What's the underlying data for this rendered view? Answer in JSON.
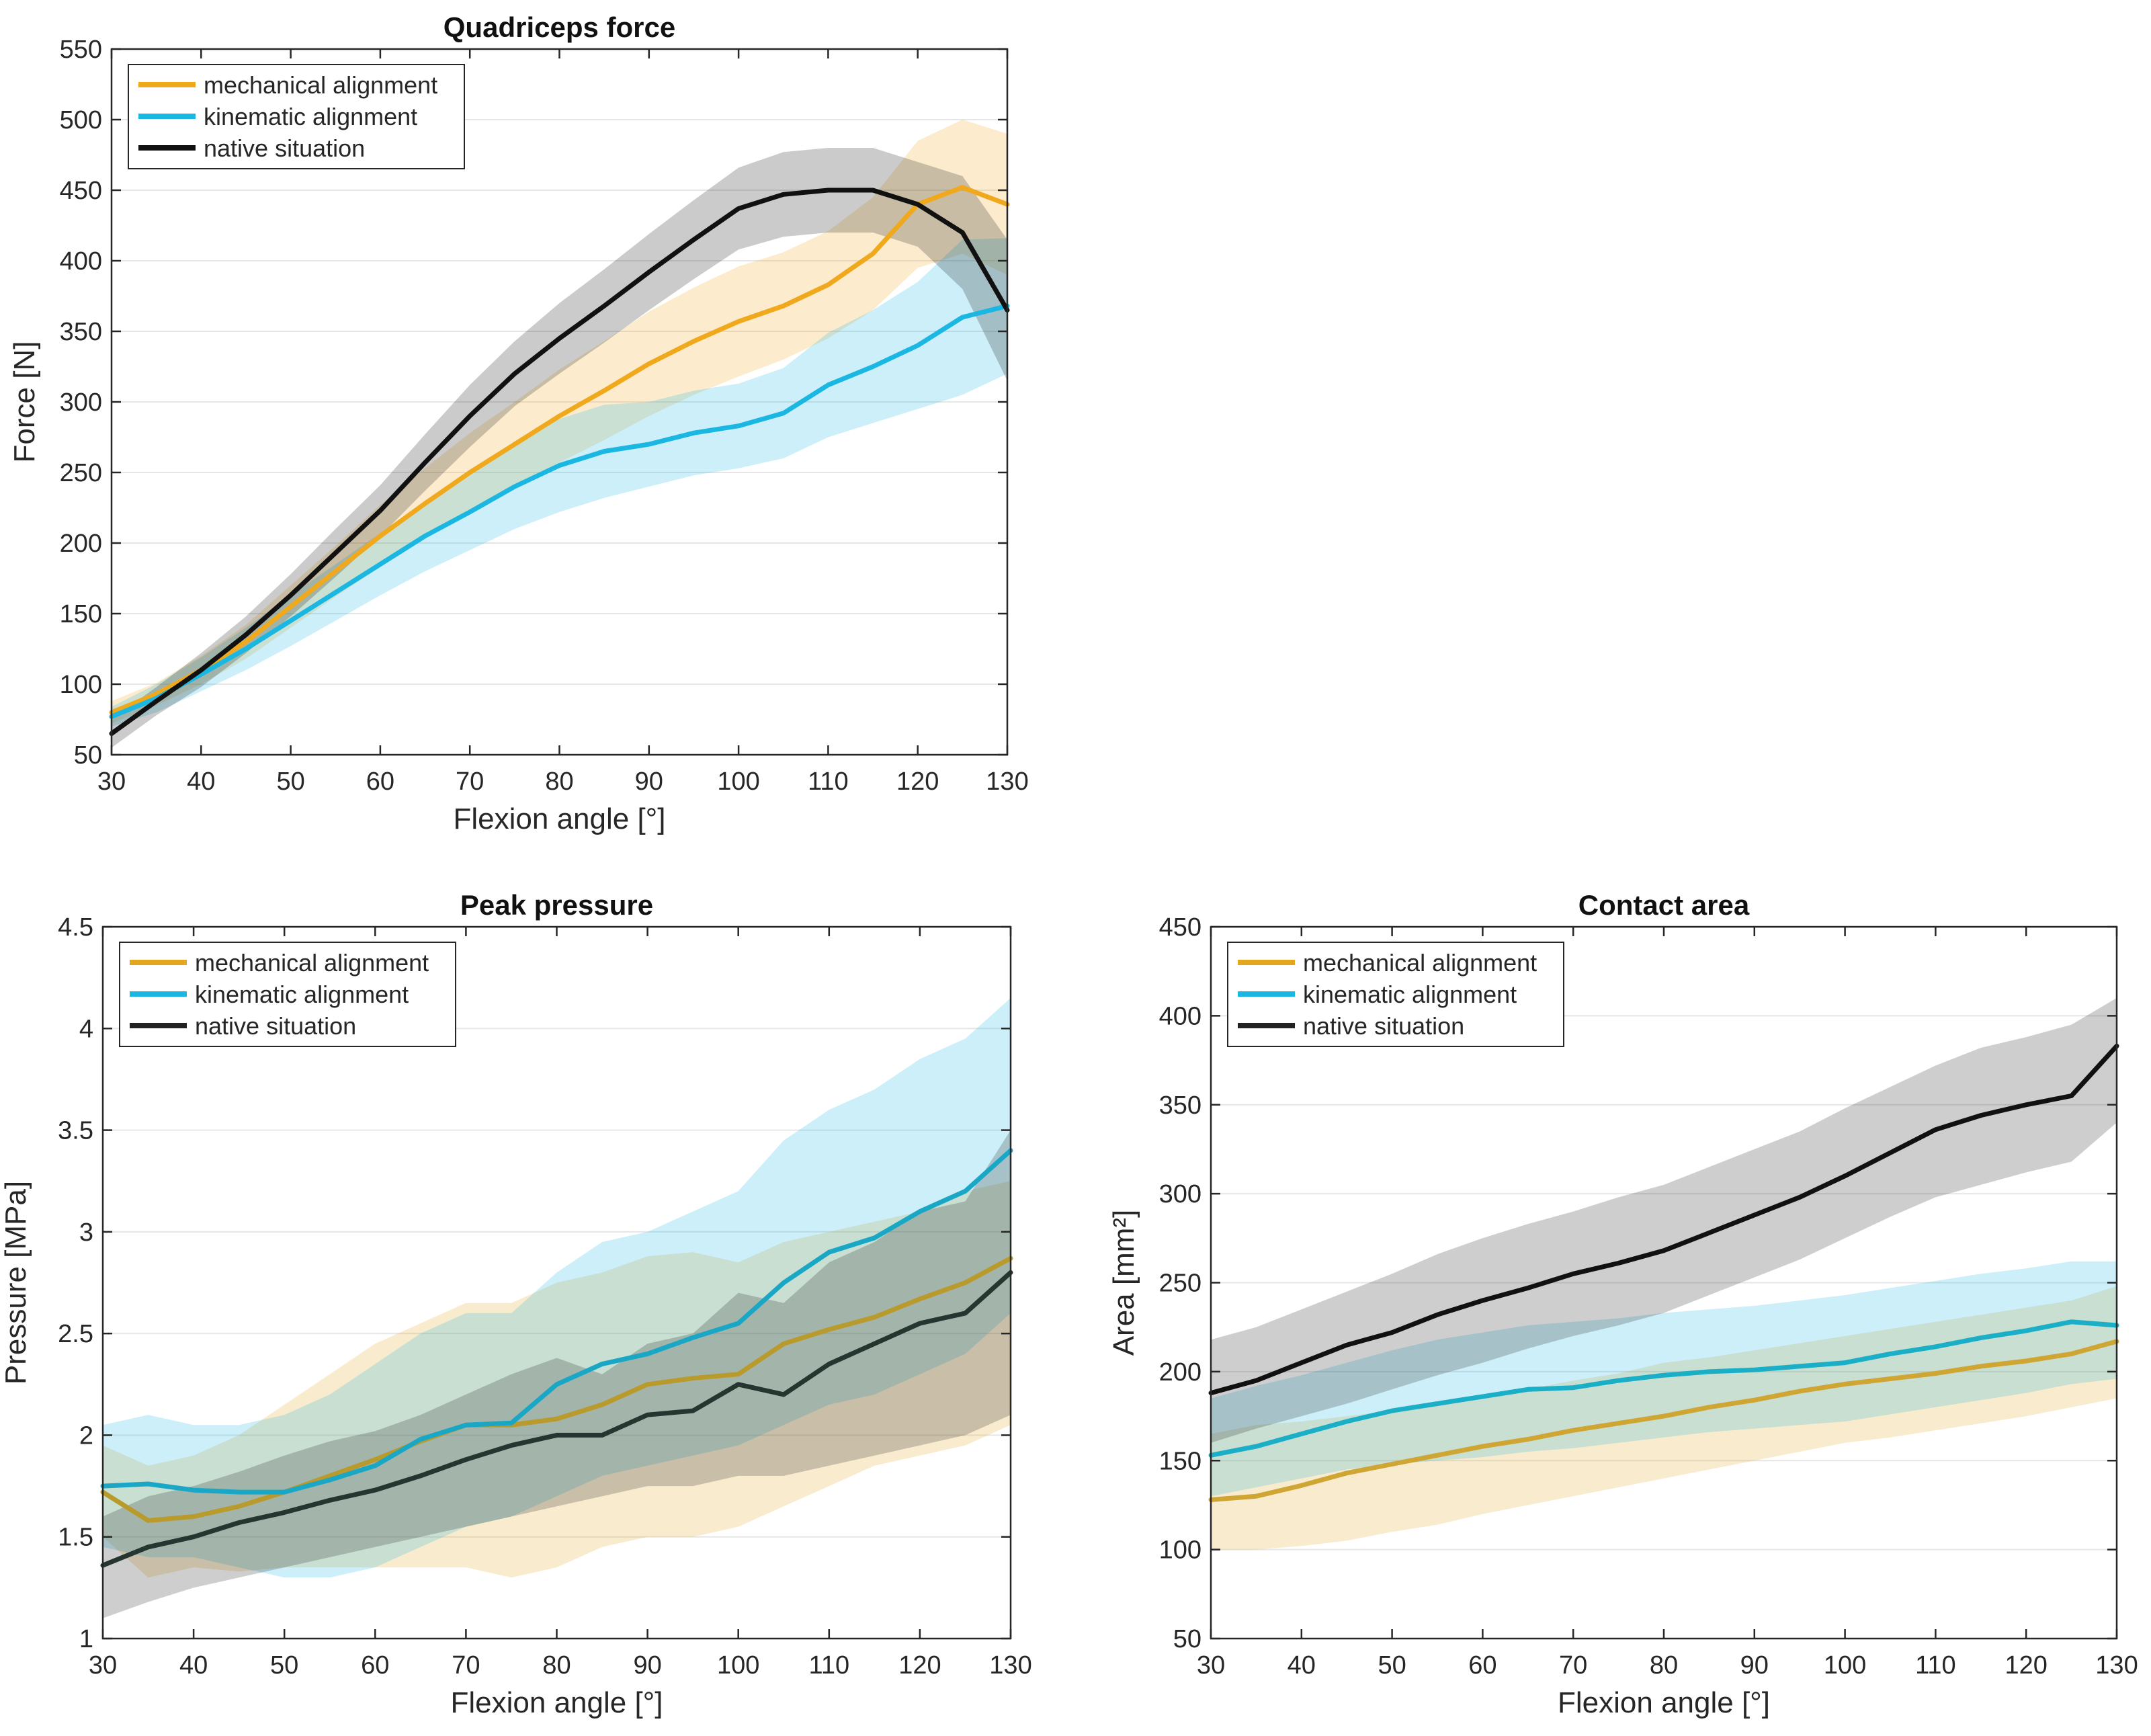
{
  "figure": {
    "panel_count": 3
  },
  "chart_data": [
    {
      "id": "quad",
      "type": "line",
      "title": "Quadriceps force",
      "xlabel": "Flexion angle [°]",
      "ylabel": "Force [N]",
      "xlim": [
        30,
        130
      ],
      "ylim": [
        50,
        550
      ],
      "xticks": [
        30,
        40,
        50,
        60,
        70,
        80,
        90,
        100,
        110,
        120,
        130
      ],
      "yticks": [
        50,
        100,
        150,
        200,
        250,
        300,
        350,
        400,
        450,
        500,
        550
      ],
      "xtick_labels": [
        "30",
        "40",
        "50",
        "60",
        "70",
        "80",
        "90",
        "100",
        "110",
        "120",
        "130"
      ],
      "ytick_labels": [
        "50",
        "100",
        "150",
        "200",
        "250",
        "300",
        "350",
        "400",
        "450",
        "500",
        "550"
      ],
      "grid": "y",
      "legend": "top-left",
      "x": [
        30,
        35,
        40,
        45,
        50,
        55,
        60,
        65,
        70,
        75,
        80,
        85,
        90,
        95,
        100,
        105,
        110,
        115,
        120,
        125,
        130
      ],
      "series": [
        {
          "name": "mechanical alignment",
          "color": "#f0a91d",
          "values": [
            80,
            93,
            110,
            130,
            155,
            180,
            205,
            228,
            250,
            270,
            290,
            308,
            327,
            343,
            357,
            368,
            383,
            405,
            440,
            452,
            440
          ],
          "lower": [
            72,
            85,
            100,
            118,
            140,
            162,
            183,
            203,
            222,
            240,
            257,
            273,
            290,
            305,
            318,
            330,
            345,
            365,
            395,
            405,
            390
          ],
          "upper": [
            88,
            101,
            120,
            142,
            170,
            198,
            227,
            253,
            278,
            300,
            323,
            343,
            364,
            381,
            396,
            406,
            421,
            445,
            485,
            500,
            490
          ]
        },
        {
          "name": "kinematic alignment",
          "color": "#1ab7e2",
          "values": [
            77,
            90,
            107,
            125,
            145,
            165,
            185,
            205,
            222,
            240,
            255,
            265,
            270,
            278,
            283,
            292,
            312,
            325,
            340,
            360,
            368
          ],
          "lower": [
            70,
            80,
            95,
            110,
            127,
            145,
            163,
            180,
            195,
            210,
            222,
            232,
            240,
            248,
            253,
            260,
            275,
            285,
            295,
            305,
            320
          ],
          "upper": [
            84,
            100,
            119,
            140,
            163,
            185,
            207,
            230,
            249,
            270,
            288,
            298,
            300,
            308,
            313,
            324,
            349,
            365,
            385,
            415,
            416
          ]
        },
        {
          "name": "native situation",
          "color": "#111111",
          "values": [
            65,
            88,
            110,
            135,
            163,
            193,
            223,
            257,
            290,
            320,
            345,
            368,
            392,
            415,
            437,
            447,
            450,
            450,
            440,
            420,
            365
          ],
          "lower": [
            55,
            78,
            98,
            122,
            148,
            176,
            205,
            237,
            268,
            297,
            320,
            342,
            365,
            387,
            408,
            417,
            420,
            420,
            410,
            380,
            315
          ],
          "upper": [
            75,
            98,
            122,
            148,
            178,
            210,
            241,
            277,
            312,
            343,
            370,
            394,
            419,
            443,
            466,
            477,
            480,
            480,
            470,
            460,
            415
          ]
        }
      ]
    },
    {
      "id": "pressure",
      "type": "line",
      "title": "Peak pressure",
      "xlabel": "Flexion angle [°]",
      "ylabel": "Pressure [MPa]",
      "xlim": [
        30,
        130
      ],
      "ylim": [
        1,
        4.5
      ],
      "xticks": [
        30,
        40,
        50,
        60,
        70,
        80,
        90,
        100,
        110,
        120,
        130
      ],
      "yticks": [
        1,
        1.5,
        2,
        2.5,
        3,
        3.5,
        4,
        4.5
      ],
      "xtick_labels": [
        "30",
        "40",
        "50",
        "60",
        "70",
        "80",
        "90",
        "100",
        "110",
        "120",
        "130"
      ],
      "ytick_labels": [
        "1",
        "1.5",
        "2",
        "2.5",
        "3",
        "3.5",
        "4",
        "4.5"
      ],
      "grid": "y",
      "legend": "top-left",
      "x": [
        30,
        35,
        40,
        45,
        50,
        55,
        60,
        65,
        70,
        75,
        80,
        85,
        90,
        95,
        100,
        105,
        110,
        115,
        120,
        125,
        130
      ],
      "series": [
        {
          "name": "mechanical alignment",
          "color": "#e4a521",
          "line_color": "#b99a2c",
          "values": [
            1.72,
            1.58,
            1.6,
            1.65,
            1.72,
            1.8,
            1.88,
            1.97,
            2.05,
            2.05,
            2.08,
            2.15,
            2.25,
            2.28,
            2.3,
            2.45,
            2.52,
            2.58,
            2.67,
            2.75,
            2.87
          ],
          "lower": [
            1.5,
            1.3,
            1.35,
            1.33,
            1.35,
            1.35,
            1.35,
            1.35,
            1.35,
            1.3,
            1.35,
            1.45,
            1.5,
            1.5,
            1.55,
            1.65,
            1.75,
            1.85,
            1.9,
            1.95,
            2.05
          ],
          "upper": [
            1.95,
            1.85,
            1.9,
            2.0,
            2.15,
            2.3,
            2.45,
            2.55,
            2.65,
            2.65,
            2.75,
            2.8,
            2.88,
            2.9,
            2.85,
            2.95,
            3.0,
            3.05,
            3.1,
            3.2,
            3.25
          ]
        },
        {
          "name": "kinematic alignment",
          "color": "#1ab7e2",
          "line_color": "#1aa7c6",
          "values": [
            1.75,
            1.76,
            1.73,
            1.72,
            1.72,
            1.78,
            1.85,
            1.98,
            2.05,
            2.06,
            2.25,
            2.35,
            2.4,
            2.48,
            2.55,
            2.75,
            2.9,
            2.97,
            3.1,
            3.2,
            3.4
          ],
          "lower": [
            1.45,
            1.4,
            1.4,
            1.35,
            1.3,
            1.3,
            1.35,
            1.45,
            1.55,
            1.6,
            1.7,
            1.8,
            1.85,
            1.9,
            1.95,
            2.05,
            2.15,
            2.2,
            2.3,
            2.4,
            2.6
          ],
          "upper": [
            2.05,
            2.1,
            2.05,
            2.05,
            2.1,
            2.2,
            2.35,
            2.5,
            2.6,
            2.6,
            2.8,
            2.95,
            3.0,
            3.1,
            3.2,
            3.45,
            3.6,
            3.7,
            3.85,
            3.95,
            4.15
          ]
        },
        {
          "name": "native situation",
          "color": "#222222",
          "line_color": "#25352f",
          "values": [
            1.36,
            1.45,
            1.5,
            1.57,
            1.62,
            1.68,
            1.73,
            1.8,
            1.88,
            1.95,
            2.0,
            2.0,
            2.1,
            2.12,
            2.25,
            2.2,
            2.35,
            2.45,
            2.55,
            2.6,
            2.8
          ],
          "lower": [
            1.1,
            1.18,
            1.25,
            1.3,
            1.35,
            1.4,
            1.45,
            1.5,
            1.55,
            1.6,
            1.65,
            1.7,
            1.75,
            1.75,
            1.8,
            1.8,
            1.85,
            1.9,
            1.95,
            2.0,
            2.1
          ],
          "upper": [
            1.6,
            1.7,
            1.75,
            1.82,
            1.9,
            1.97,
            2.02,
            2.1,
            2.2,
            2.3,
            2.38,
            2.3,
            2.45,
            2.5,
            2.7,
            2.65,
            2.85,
            2.95,
            3.1,
            3.15,
            3.5
          ]
        }
      ]
    },
    {
      "id": "area",
      "type": "line",
      "title": "Contact area",
      "xlabel": "Flexion angle [°]",
      "ylabel": "Area [mm²]",
      "xlim": [
        30,
        130
      ],
      "ylim": [
        50,
        450
      ],
      "xticks": [
        30,
        40,
        50,
        60,
        70,
        80,
        90,
        100,
        110,
        120,
        130
      ],
      "yticks": [
        50,
        100,
        150,
        200,
        250,
        300,
        350,
        400,
        450
      ],
      "xtick_labels": [
        "30",
        "40",
        "50",
        "60",
        "70",
        "80",
        "90",
        "100",
        "110",
        "120",
        "130"
      ],
      "ytick_labels": [
        "50",
        "100",
        "150",
        "200",
        "250",
        "300",
        "350",
        "400",
        "450"
      ],
      "grid": "y",
      "legend": "top-left",
      "x": [
        30,
        35,
        40,
        45,
        50,
        55,
        60,
        65,
        70,
        75,
        80,
        85,
        90,
        95,
        100,
        105,
        110,
        115,
        120,
        125,
        130
      ],
      "series": [
        {
          "name": "mechanical alignment",
          "color": "#e4a521",
          "line_color": "#cfa533",
          "values": [
            128,
            130,
            136,
            143,
            148,
            153,
            158,
            162,
            167,
            171,
            175,
            180,
            184,
            189,
            193,
            196,
            199,
            203,
            206,
            210,
            217
          ],
          "lower": [
            100,
            100,
            102,
            105,
            110,
            114,
            120,
            125,
            130,
            135,
            140,
            145,
            150,
            155,
            160,
            163,
            167,
            171,
            175,
            180,
            185
          ],
          "upper": [
            165,
            170,
            172,
            175,
            178,
            182,
            186,
            190,
            195,
            199,
            205,
            208,
            212,
            216,
            220,
            224,
            228,
            232,
            236,
            240,
            248
          ]
        },
        {
          "name": "kinematic alignment",
          "color": "#1ab7e2",
          "line_color": "#1aafc6",
          "values": [
            153,
            158,
            165,
            172,
            178,
            182,
            186,
            190,
            191,
            195,
            198,
            200,
            201,
            203,
            205,
            210,
            214,
            219,
            223,
            228,
            226
          ],
          "lower": [
            130,
            135,
            140,
            145,
            148,
            150,
            152,
            155,
            157,
            160,
            163,
            166,
            168,
            170,
            172,
            176,
            180,
            184,
            188,
            193,
            196
          ],
          "upper": [
            185,
            192,
            198,
            205,
            212,
            218,
            222,
            226,
            228,
            230,
            233,
            235,
            237,
            240,
            243,
            247,
            251,
            255,
            258,
            262,
            262
          ]
        },
        {
          "name": "native situation",
          "color": "#222222",
          "line_color": "#111111",
          "values": [
            188,
            195,
            205,
            215,
            222,
            232,
            240,
            247,
            255,
            261,
            268,
            278,
            288,
            298,
            310,
            323,
            336,
            344,
            350,
            355,
            383
          ],
          "lower": [
            160,
            168,
            175,
            182,
            190,
            198,
            205,
            213,
            220,
            226,
            233,
            243,
            253,
            263,
            275,
            287,
            298,
            305,
            312,
            318,
            340
          ],
          "upper": [
            218,
            225,
            235,
            245,
            255,
            266,
            275,
            283,
            290,
            298,
            305,
            315,
            325,
            335,
            348,
            360,
            372,
            382,
            388,
            395,
            410
          ]
        }
      ]
    }
  ]
}
